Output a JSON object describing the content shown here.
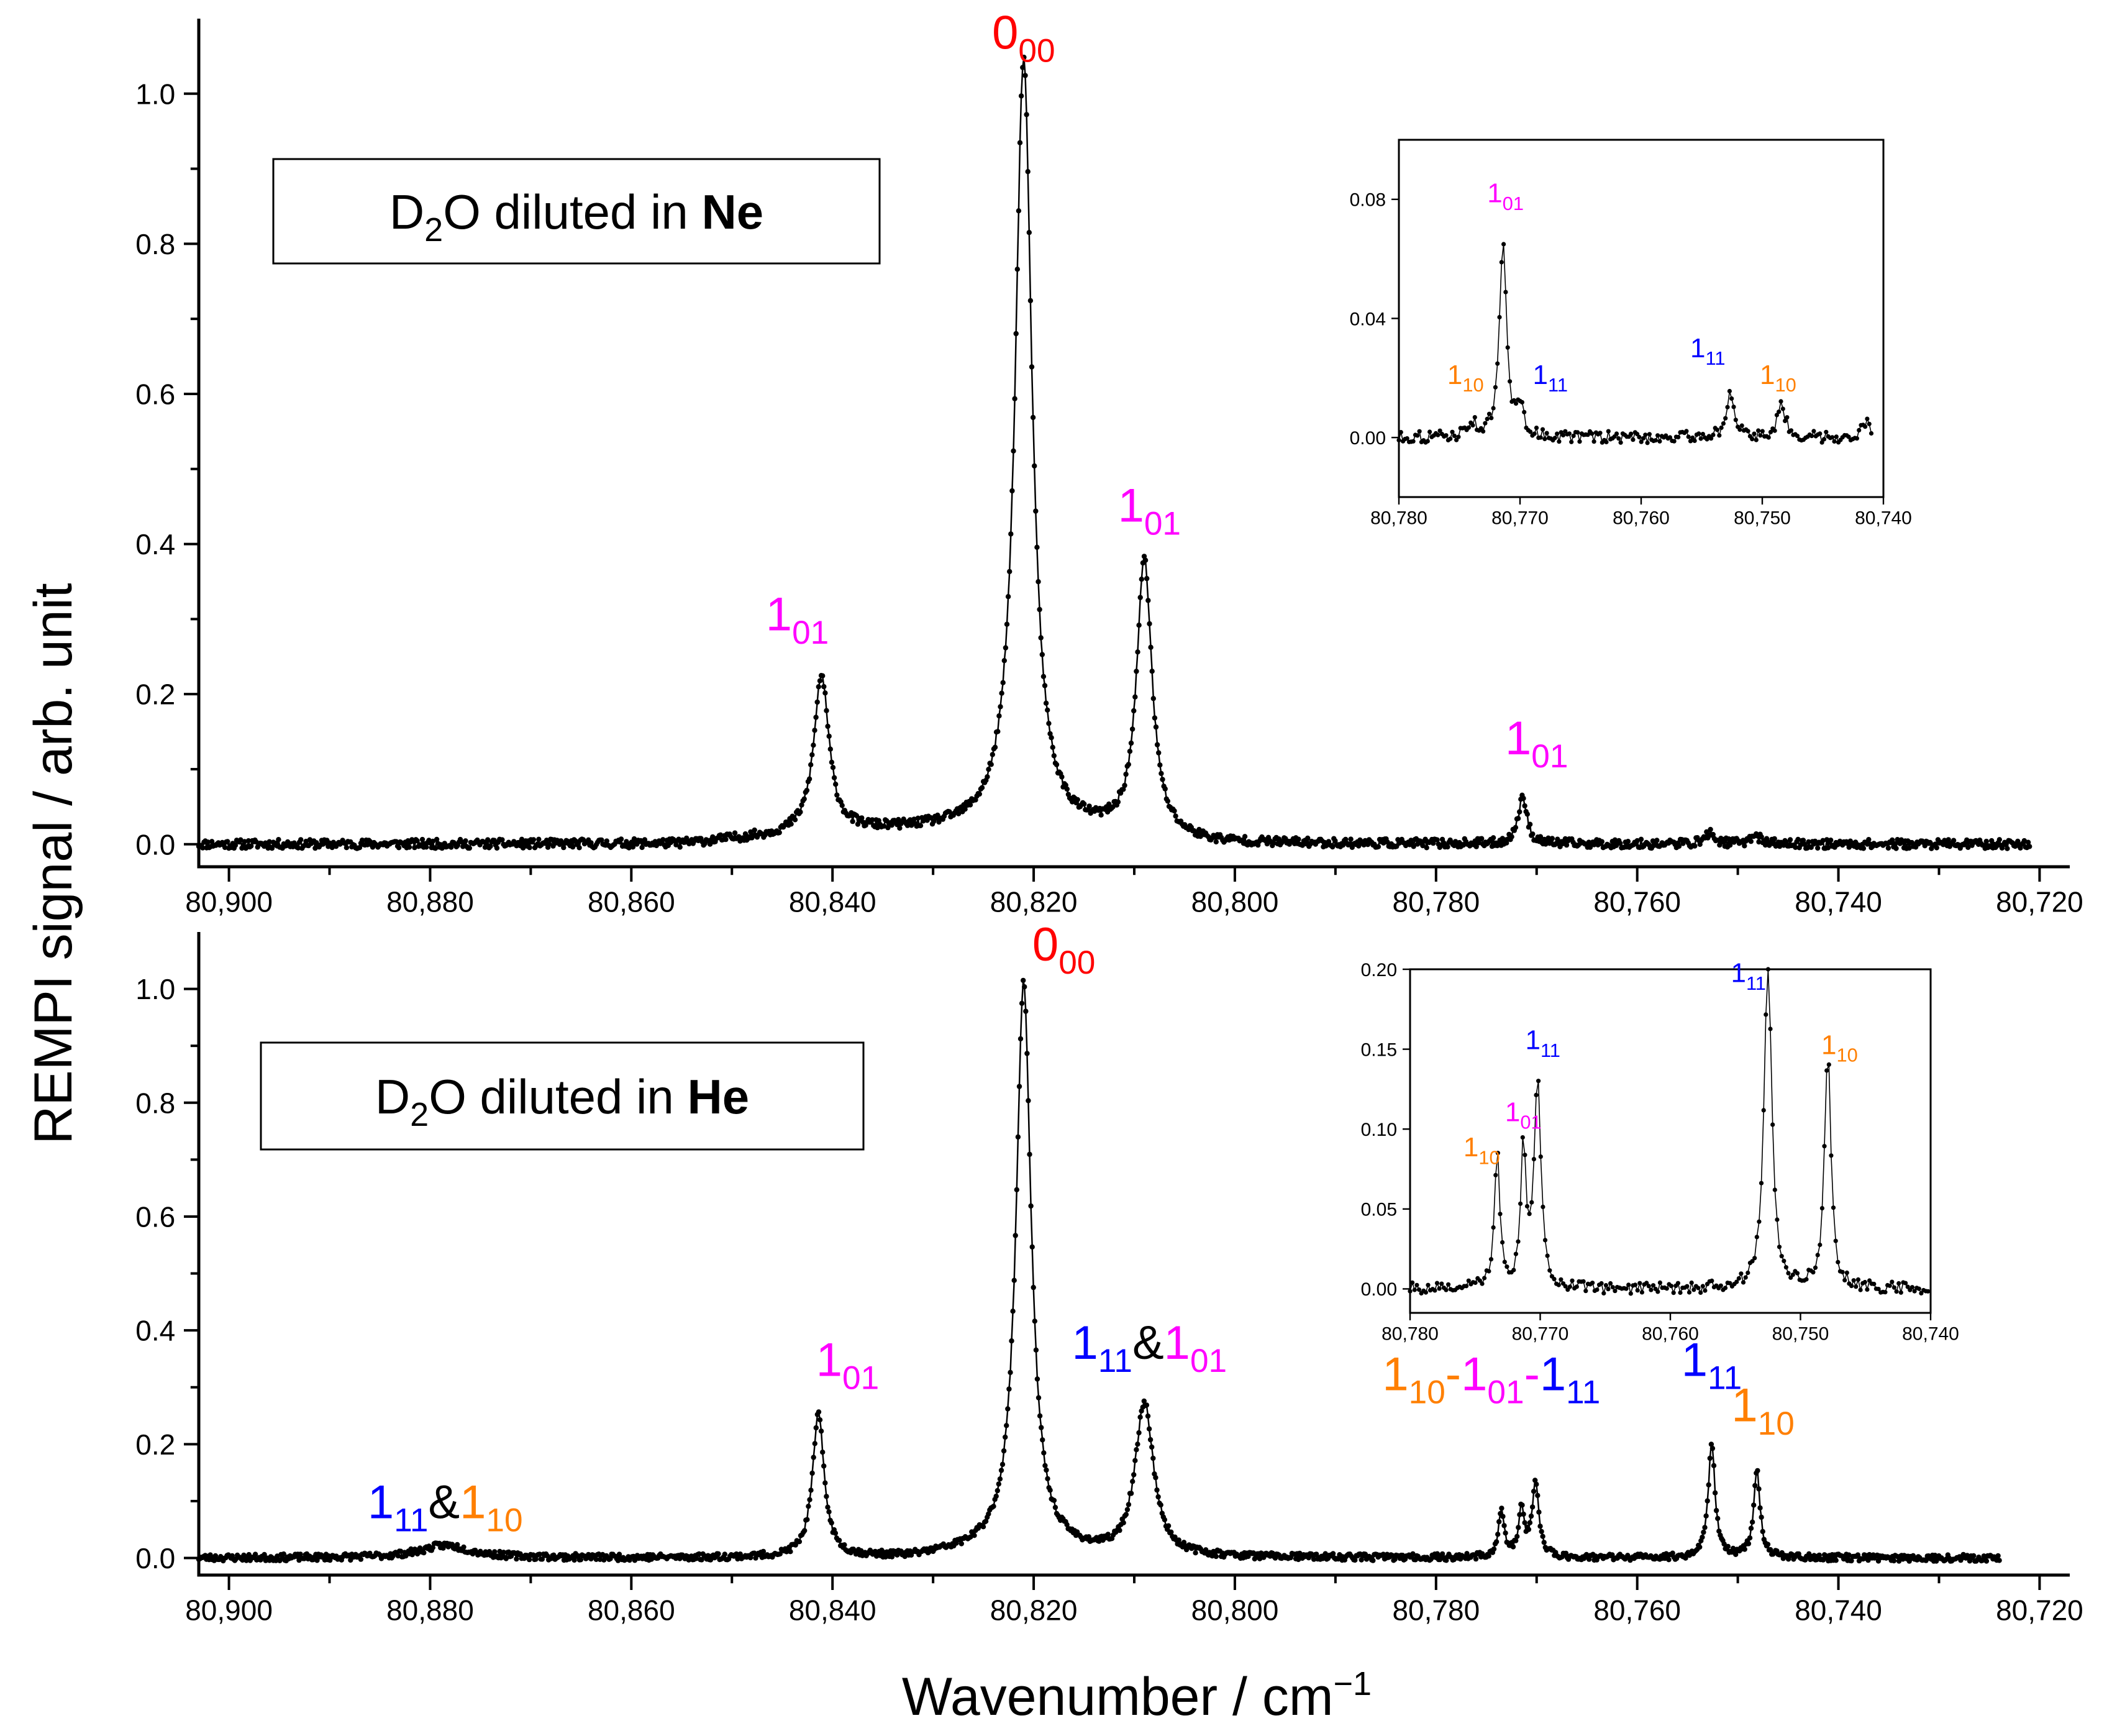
{
  "colors": {
    "axis": "#000000",
    "trace": "#000000",
    "label_red": "#ff0000",
    "label_magenta": "#ff00ff",
    "label_blue": "#0000ff",
    "label_orange": "#ff7f00"
  },
  "figure": {
    "shared_xlabel": "Wavenumber / cm",
    "shared_xlabel_superscript": "−1",
    "ylabel": "REMPI signal / arb. unit"
  },
  "chart_data": [
    {
      "type": "line",
      "id": "ne",
      "xlim": [
        80903,
        80717
      ],
      "ylim": [
        -0.03,
        1.1
      ],
      "xticks": [
        80900,
        80880,
        80860,
        80840,
        80820,
        80800,
        80780,
        80760,
        80740,
        80720
      ],
      "xticklabels": [
        "80,900",
        "80,880",
        "80,860",
        "80,840",
        "80,820",
        "80,800",
        "80,780",
        "80,760",
        "80,740",
        "80,720"
      ],
      "yticks": [
        0.0,
        0.2,
        0.4,
        0.6,
        0.8,
        1.0
      ],
      "yticklabels": [
        "0.0",
        "0.2",
        "0.4",
        "0.6",
        "0.8",
        "1.0"
      ],
      "legend_box": {
        "prefix": "D",
        "subscript": "2",
        "middle": "O diluted in ",
        "bold": "Ne"
      },
      "series": [
        {
          "name": "D2O in Ne",
          "x_range": [
            80903,
            80721
          ],
          "baseline": 0.0,
          "peaks": [
            {
              "center": 80841.1,
              "height": 0.21,
              "width": 0.9
            },
            {
              "center": 80821.0,
              "height": 1.03,
              "width": 1.0
            },
            {
              "center": 80809.0,
              "height": 0.37,
              "width": 0.9
            },
            {
              "center": 80771.4,
              "height": 0.065,
              "width": 0.5
            },
            {
              "center": 80752.8,
              "height": 0.014,
              "width": 0.6
            },
            {
              "center": 80748.3,
              "height": 0.012,
              "width": 0.6
            }
          ],
          "bumps": [
            {
              "from": 80855,
              "to": 80802,
              "level": 0.018
            }
          ]
        }
      ],
      "annotations": [
        {
          "x": 80821.0,
          "y": 1.06,
          "parts": [
            {
              "t": "0",
              "sub": "00",
              "color": "label_red"
            }
          ]
        },
        {
          "x": 80843.5,
          "y": 0.285,
          "parts": [
            {
              "t": "1",
              "sub": "01",
              "color": "label_magenta"
            }
          ]
        },
        {
          "x": 80808.5,
          "y": 0.43,
          "parts": [
            {
              "t": "1",
              "sub": "01",
              "color": "label_magenta"
            }
          ]
        },
        {
          "x": 80770.0,
          "y": 0.12,
          "parts": [
            {
              "t": "1",
              "sub": "01",
              "color": "label_magenta"
            }
          ]
        }
      ],
      "inset": {
        "xlim": [
          80780,
          80740
        ],
        "ylim": [
          -0.02,
          0.1
        ],
        "xticks": [
          80780,
          80770,
          80760,
          80750,
          80740
        ],
        "xticklabels": [
          "80,780",
          "80,770",
          "80,760",
          "80,750",
          "80,740"
        ],
        "yticks": [
          0.0,
          0.04,
          0.08
        ],
        "yticklabels": [
          "0.00",
          "0.04",
          "0.08"
        ],
        "data_x_range": [
          80780,
          80741
        ],
        "peaks": [
          {
            "center": 80771.4,
            "height": 0.065,
            "width": 0.35
          },
          {
            "center": 80770.0,
            "height": 0.01,
            "width": 0.3
          },
          {
            "center": 80774.0,
            "height": 0.005,
            "width": 0.4
          },
          {
            "center": 80752.7,
            "height": 0.014,
            "width": 0.4
          },
          {
            "center": 80748.4,
            "height": 0.011,
            "width": 0.4
          },
          {
            "center": 80741.5,
            "height": 0.005,
            "width": 0.4
          }
        ],
        "annotations": [
          {
            "x": 80771.2,
            "y": 0.079,
            "parts": [
              {
                "t": "1",
                "sub": "01",
                "color": "label_magenta"
              }
            ]
          },
          {
            "x": 80774.5,
            "y": 0.018,
            "parts": [
              {
                "t": "1",
                "sub": "10",
                "color": "label_orange"
              }
            ]
          },
          {
            "x": 80767.5,
            "y": 0.018,
            "parts": [
              {
                "t": "1",
                "sub": "11",
                "color": "label_blue"
              }
            ]
          },
          {
            "x": 80754.5,
            "y": 0.027,
            "parts": [
              {
                "t": "1",
                "sub": "11",
                "color": "label_blue"
              }
            ]
          },
          {
            "x": 80748.7,
            "y": 0.018,
            "parts": [
              {
                "t": "1",
                "sub": "10",
                "color": "label_orange"
              }
            ]
          }
        ]
      }
    },
    {
      "type": "line",
      "id": "he",
      "xlim": [
        80903,
        80717
      ],
      "ylim": [
        -0.03,
        1.1
      ],
      "xticks": [
        80900,
        80880,
        80860,
        80840,
        80820,
        80800,
        80780,
        80760,
        80740,
        80720
      ],
      "xticklabels": [
        "80,900",
        "80,880",
        "80,860",
        "80,840",
        "80,820",
        "80,800",
        "80,780",
        "80,760",
        "80,740",
        "80,720"
      ],
      "yticks": [
        0.0,
        0.2,
        0.4,
        0.6,
        0.8,
        1.0
      ],
      "yticklabels": [
        "0.0",
        "0.2",
        "0.4",
        "0.6",
        "0.8",
        "1.0"
      ],
      "legend_box": {
        "prefix": "D",
        "subscript": "2",
        "middle": "O diluted in ",
        "bold": "He"
      },
      "series": [
        {
          "name": "D2O in He",
          "x_range": [
            80903,
            80724
          ],
          "baseline": 0.0,
          "peaks": [
            {
              "center": 80878.5,
              "height": 0.022,
              "width": 3.0
            },
            {
              "center": 80841.4,
              "height": 0.25,
              "width": 0.7
            },
            {
              "center": 80821.0,
              "height": 1.0,
              "width": 0.9
            },
            {
              "center": 80809.0,
              "height": 0.27,
              "width": 1.1
            },
            {
              "center": 80773.5,
              "height": 0.08,
              "width": 0.35
            },
            {
              "center": 80771.5,
              "height": 0.08,
              "width": 0.35
            },
            {
              "center": 80770.1,
              "height": 0.13,
              "width": 0.4
            },
            {
              "center": 80752.6,
              "height": 0.205,
              "width": 0.4
            },
            {
              "center": 80748.1,
              "height": 0.15,
              "width": 0.4
            }
          ],
          "bumps": [
            {
              "from": 80832,
              "to": 80812,
              "level": 0.012
            }
          ]
        }
      ],
      "annotations": [
        {
          "x": 80817.0,
          "y": 1.05,
          "parts": [
            {
              "t": "0",
              "sub": "00",
              "color": "label_red"
            }
          ]
        },
        {
          "x": 80838.5,
          "y": 0.32,
          "parts": [
            {
              "t": "1",
              "sub": "01",
              "color": "label_magenta"
            }
          ]
        },
        {
          "x": 80808.5,
          "y": 0.35,
          "parts": [
            {
              "t": "1",
              "sub": "11",
              "color": "label_blue"
            },
            {
              "t": "&",
              "color": "axis"
            },
            {
              "t": "1",
              "sub": "01",
              "color": "label_magenta"
            }
          ]
        },
        {
          "x": 80878.5,
          "y": 0.07,
          "parts": [
            {
              "t": "1",
              "sub": "11",
              "color": "label_blue"
            },
            {
              "t": "&",
              "color": "axis"
            },
            {
              "t": "1",
              "sub": "10",
              "color": "label_orange"
            }
          ]
        },
        {
          "x": 80774.5,
          "y": 0.295,
          "parts": [
            {
              "t": "1",
              "sub": "10",
              "color": "label_orange"
            },
            {
              "t": "-",
              "color": "label_orange"
            },
            {
              "t": "1",
              "sub": "01",
              "color": "label_magenta"
            },
            {
              "t": "-",
              "color": "label_magenta"
            },
            {
              "t": "1",
              "sub": "11",
              "color": "label_blue"
            }
          ]
        },
        {
          "x": 80752.6,
          "y": 0.32,
          "parts": [
            {
              "t": "1",
              "sub": "11",
              "color": "label_blue"
            }
          ]
        },
        {
          "x": 80747.5,
          "y": 0.24,
          "parts": [
            {
              "t": "1",
              "sub": "10",
              "color": "label_orange"
            }
          ]
        }
      ],
      "inset": {
        "xlim": [
          80780,
          80740
        ],
        "ylim": [
          -0.015,
          0.2
        ],
        "xticks": [
          80780,
          80770,
          80760,
          80750,
          80740
        ],
        "xticklabels": [
          "80,780",
          "80,770",
          "80,760",
          "80,750",
          "80,740"
        ],
        "yticks": [
          0.0,
          0.05,
          0.1,
          0.15,
          0.2
        ],
        "yticklabels": [
          "0.00",
          "0.05",
          "0.10",
          "0.15",
          "0.20"
        ],
        "data_x_range": [
          80780,
          80740.2
        ],
        "peaks": [
          {
            "center": 80773.3,
            "height": 0.082,
            "width": 0.25
          },
          {
            "center": 80771.3,
            "height": 0.085,
            "width": 0.25
          },
          {
            "center": 80770.2,
            "height": 0.132,
            "width": 0.3
          },
          {
            "center": 80752.5,
            "height": 0.205,
            "width": 0.35
          },
          {
            "center": 80747.9,
            "height": 0.15,
            "width": 0.3
          }
        ],
        "annotations": [
          {
            "x": 80774.5,
            "y": 0.083,
            "parts": [
              {
                "t": "1",
                "sub": "10",
                "color": "label_orange"
              }
            ]
          },
          {
            "x": 80771.3,
            "y": 0.105,
            "parts": [
              {
                "t": "1",
                "sub": "01",
                "color": "label_magenta"
              }
            ]
          },
          {
            "x": 80769.8,
            "y": 0.15,
            "parts": [
              {
                "t": "1",
                "sub": "11",
                "color": "label_blue"
              }
            ]
          },
          {
            "x": 80754.0,
            "y": 0.192,
            "parts": [
              {
                "t": "1",
                "sub": "11",
                "color": "label_blue"
              }
            ]
          },
          {
            "x": 80747.0,
            "y": 0.147,
            "parts": [
              {
                "t": "1",
                "sub": "10",
                "color": "label_orange"
              }
            ]
          }
        ]
      }
    }
  ]
}
